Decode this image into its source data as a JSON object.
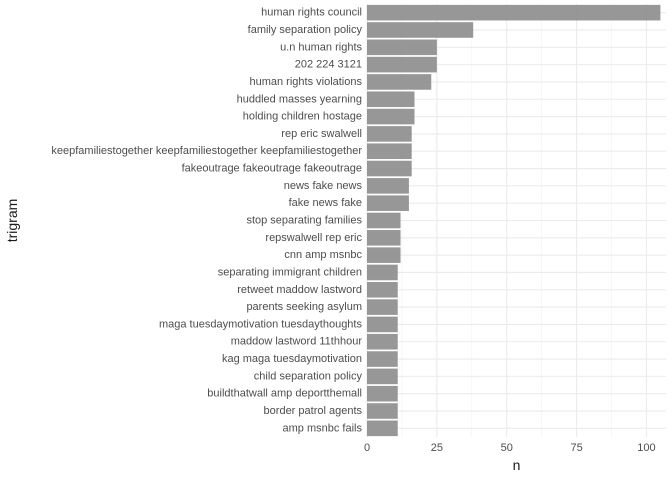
{
  "chart_data": {
    "type": "bar",
    "orientation": "horizontal",
    "xlabel": "n",
    "ylabel": "trigram",
    "xlim": [
      0,
      107
    ],
    "xticks": [
      0,
      25,
      50,
      75,
      100
    ],
    "grid": true,
    "bar_color": "#8c8c8c",
    "categories": [
      "human rights council",
      "family separation policy",
      "u.n human rights",
      "202 224 3121",
      "human rights violations",
      "huddled masses yearning",
      "holding children hostage",
      "rep eric swalwell",
      "keepfamiliestogether keepfamiliestogether keepfamiliestogether",
      "fakeoutrage fakeoutrage fakeoutrage",
      "news fake news",
      "fake news fake",
      "stop separating families",
      "repswalwell rep eric",
      "cnn amp msnbc",
      "separating immigrant children",
      "retweet maddow lastword",
      "parents seeking asylum",
      "maga tuesdaymotivation tuesdaythoughts",
      "maddow lastword 11thhour",
      "kag maga tuesdaymotivation",
      "child separation policy",
      "buildthatwall amp deportthemall",
      "border patrol agents",
      "amp msnbc fails"
    ],
    "values": [
      105,
      38,
      25,
      25,
      23,
      17,
      17,
      16,
      16,
      16,
      15,
      15,
      12,
      12,
      12,
      11,
      11,
      11,
      11,
      11,
      11,
      11,
      11,
      11,
      11
    ]
  }
}
